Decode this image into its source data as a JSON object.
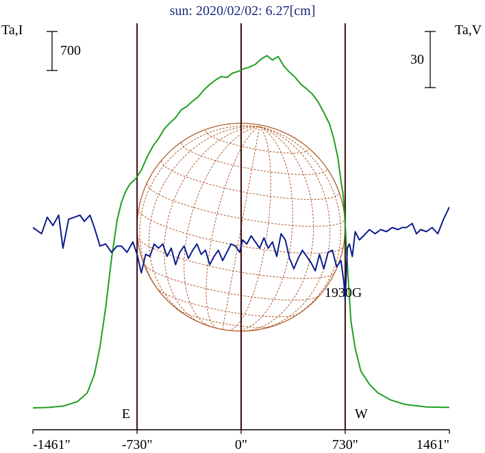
{
  "chart_data": {
    "type": "line",
    "title": "sun: 2020/02/02: 6.27[cm]",
    "left_axis_label": "Ta,I",
    "right_axis_label": "Ta,V",
    "scale_bar_left": "700",
    "scale_bar_right": "30",
    "xticks": [
      {
        "value": -1461,
        "label": "-1461\""
      },
      {
        "value": -730,
        "label": "-730\""
      },
      {
        "value": 0,
        "label": "0\""
      },
      {
        "value": 730,
        "label": "730\""
      },
      {
        "value": 1461,
        "label": "1461\""
      }
    ],
    "xlim": [
      -1461,
      1461
    ],
    "markers": [
      {
        "x": -730,
        "label": "E"
      },
      {
        "x": 0,
        "label": ""
      },
      {
        "x": 730,
        "label": "W"
      }
    ],
    "annotation": {
      "x": 730,
      "y": -5,
      "text": "1930G"
    },
    "solar_radius_arcsec": 730,
    "colors": {
      "intensity": "#1e9e1e",
      "polarization": "#0a1a8c",
      "disk": "#b05a2a",
      "markers": "#3a0a0a",
      "axis": "#000000",
      "title": "#1a2a7a"
    },
    "series": [
      {
        "key": "intensity",
        "name": "",
        "points": [
          [
            -1461,
            0
          ],
          [
            -1350,
            5
          ],
          [
            -1250,
            20
          ],
          [
            -1150,
            70
          ],
          [
            -1080,
            170
          ],
          [
            -1030,
            380
          ],
          [
            -990,
            700
          ],
          [
            -950,
            1150
          ],
          [
            -910,
            1700
          ],
          [
            -870,
            2150
          ],
          [
            -840,
            2350
          ],
          [
            -810,
            2480
          ],
          [
            -780,
            2560
          ],
          [
            -740,
            2620
          ],
          [
            -700,
            2720
          ],
          [
            -660,
            2870
          ],
          [
            -620,
            2990
          ],
          [
            -580,
            3080
          ],
          [
            -540,
            3190
          ],
          [
            -500,
            3260
          ],
          [
            -460,
            3320
          ],
          [
            -420,
            3410
          ],
          [
            -380,
            3450
          ],
          [
            -340,
            3510
          ],
          [
            -300,
            3560
          ],
          [
            -260,
            3640
          ],
          [
            -220,
            3700
          ],
          [
            -180,
            3750
          ],
          [
            -140,
            3790
          ],
          [
            -100,
            3780
          ],
          [
            -60,
            3830
          ],
          [
            -20,
            3850
          ],
          [
            20,
            3880
          ],
          [
            60,
            3900
          ],
          [
            100,
            3930
          ],
          [
            140,
            3990
          ],
          [
            180,
            4030
          ],
          [
            220,
            3980
          ],
          [
            260,
            4020
          ],
          [
            300,
            3910
          ],
          [
            340,
            3840
          ],
          [
            380,
            3780
          ],
          [
            420,
            3700
          ],
          [
            460,
            3650
          ],
          [
            500,
            3590
          ],
          [
            540,
            3500
          ],
          [
            580,
            3380
          ],
          [
            620,
            3250
          ],
          [
            650,
            3080
          ],
          [
            680,
            2850
          ],
          [
            700,
            2600
          ],
          [
            715,
            2450
          ],
          [
            730,
            2100
          ],
          [
            750,
            1500
          ],
          [
            770,
            1000
          ],
          [
            800,
            680
          ],
          [
            840,
            420
          ],
          [
            900,
            270
          ],
          [
            960,
            170
          ],
          [
            1050,
            90
          ],
          [
            1150,
            40
          ],
          [
            1300,
            10
          ],
          [
            1461,
            5
          ]
        ]
      },
      {
        "key": "polarization",
        "name": "",
        "points": [
          [
            -1461,
            3.0
          ],
          [
            -1400,
            1.5
          ],
          [
            -1360,
            5.5
          ],
          [
            -1320,
            3.5
          ],
          [
            -1280,
            6.0
          ],
          [
            -1250,
            -2.0
          ],
          [
            -1210,
            5.0
          ],
          [
            -1170,
            5.5
          ],
          [
            -1130,
            6.0
          ],
          [
            -1100,
            4.5
          ],
          [
            -1060,
            6.0
          ],
          [
            -1030,
            3.0
          ],
          [
            -990,
            -1.5
          ],
          [
            -950,
            -1.0
          ],
          [
            -910,
            -3.0
          ],
          [
            -870,
            -1.5
          ],
          [
            -840,
            -1.5
          ],
          [
            -800,
            -3.0
          ],
          [
            -760,
            -0.5
          ],
          [
            -730,
            -3.5
          ],
          [
            -700,
            -8.0
          ],
          [
            -670,
            -3.5
          ],
          [
            -640,
            -4.0
          ],
          [
            -610,
            -1.0
          ],
          [
            -580,
            -2.0
          ],
          [
            -550,
            -1.0
          ],
          [
            -520,
            -4.0
          ],
          [
            -490,
            -2.0
          ],
          [
            -460,
            -6.0
          ],
          [
            -430,
            -3.0
          ],
          [
            -400,
            -1.5
          ],
          [
            -370,
            -4.5
          ],
          [
            -340,
            -2.5
          ],
          [
            -310,
            -1.0
          ],
          [
            -280,
            -3.5
          ],
          [
            -250,
            -2.5
          ],
          [
            -220,
            -6.0
          ],
          [
            -190,
            -4.0
          ],
          [
            -160,
            -2.5
          ],
          [
            -130,
            -5.0
          ],
          [
            -100,
            -3.0
          ],
          [
            -70,
            -1.0
          ],
          [
            -40,
            -1.5
          ],
          [
            -10,
            -3.0
          ],
          [
            10,
            0.0
          ],
          [
            40,
            -1.0
          ],
          [
            70,
            1.0
          ],
          [
            100,
            -0.5
          ],
          [
            130,
            -2.0
          ],
          [
            160,
            0.5
          ],
          [
            190,
            -2.0
          ],
          [
            220,
            -0.5
          ],
          [
            250,
            -4.0
          ],
          [
            280,
            1.5
          ],
          [
            310,
            0.0
          ],
          [
            340,
            -4.5
          ],
          [
            370,
            -7.0
          ],
          [
            400,
            -4.5
          ],
          [
            430,
            -2.5
          ],
          [
            460,
            -4.0
          ],
          [
            490,
            -5.5
          ],
          [
            520,
            -7.5
          ],
          [
            550,
            -3.5
          ],
          [
            580,
            -7.0
          ],
          [
            610,
            -3.0
          ],
          [
            640,
            -2.5
          ],
          [
            670,
            -6.5
          ],
          [
            700,
            -5.0
          ],
          [
            720,
            -10.0
          ],
          [
            730,
            -14.5
          ],
          [
            745,
            -2.0
          ],
          [
            760,
            -1.0
          ],
          [
            780,
            -4.0
          ],
          [
            800,
            2.0
          ],
          [
            830,
            0.0
          ],
          [
            860,
            1.0
          ],
          [
            900,
            2.5
          ],
          [
            940,
            1.5
          ],
          [
            980,
            2.5
          ],
          [
            1020,
            2.0
          ],
          [
            1060,
            3.0
          ],
          [
            1100,
            2.5
          ],
          [
            1130,
            3.0
          ],
          [
            1160,
            3.0
          ],
          [
            1200,
            4.0
          ],
          [
            1230,
            1.5
          ],
          [
            1260,
            2.5
          ],
          [
            1300,
            2.0
          ],
          [
            1340,
            3.0
          ],
          [
            1380,
            1.5
          ],
          [
            1420,
            5.0
          ],
          [
            1461,
            8.0
          ]
        ]
      }
    ],
    "y_ranges": {
      "intensity": [
        -250,
        4400
      ],
      "polarization": [
        -46,
        52.5
      ]
    }
  }
}
